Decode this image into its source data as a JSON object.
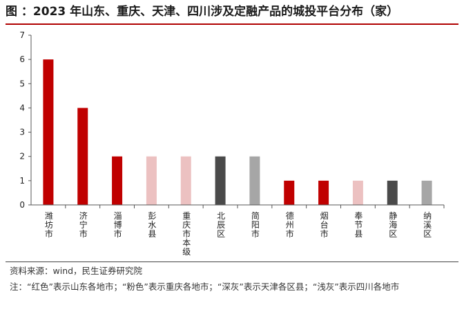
{
  "title": "图  ：2023 年山东、重庆、天津、四川涉及定融产品的城投平台分布（家）",
  "source": "资料来源：wind，民生证券研究院",
  "note": "注：“红色”表示山东各地市；“粉色”表示重庆各地市；“深灰”表示天津各区县；“浅灰”表示四川各地市",
  "colors": {
    "red": "#c00000",
    "pink": "#ecc1c1",
    "dark_gray": "#4a4a4a",
    "light_gray": "#a6a6a6",
    "title_rule": "#b00000"
  },
  "chart_data": {
    "type": "bar",
    "title": "",
    "xlabel": "",
    "ylabel": "",
    "ylim": [
      0,
      7
    ],
    "yticks": [
      0,
      1,
      2,
      3,
      4,
      5,
      6,
      7
    ],
    "grid": false,
    "categories": [
      "潍坊市",
      "济宁市",
      "淄博市",
      "彭水县",
      "重庆市本级",
      "北辰区",
      "简阳市",
      "德州市",
      "烟台市",
      "奉节县",
      "静海区",
      "纳溪区"
    ],
    "values": [
      6,
      4,
      2,
      2,
      2,
      2,
      2,
      1,
      1,
      1,
      1,
      1
    ],
    "bar_colors": [
      "red",
      "red",
      "red",
      "pink",
      "pink",
      "dark_gray",
      "light_gray",
      "red",
      "red",
      "pink",
      "dark_gray",
      "light_gray"
    ]
  }
}
